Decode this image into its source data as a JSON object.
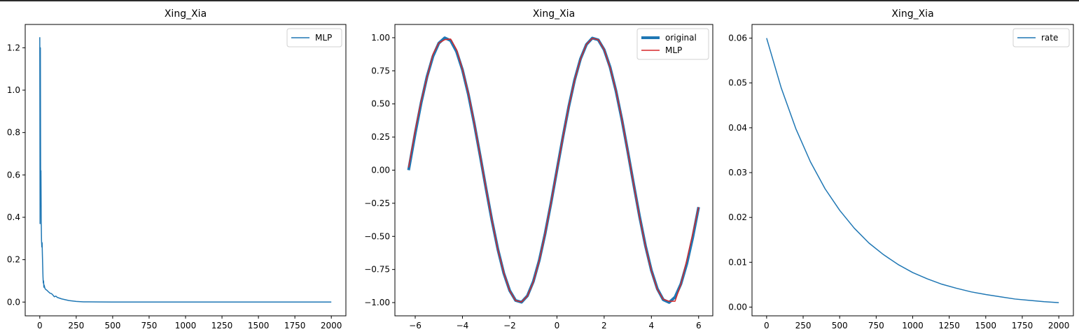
{
  "chart_data": [
    {
      "type": "line",
      "title": "Xing_Xia",
      "xlim": [
        -100,
        2100
      ],
      "ylim": [
        -0.065,
        1.31
      ],
      "xticks": [
        0,
        250,
        500,
        750,
        1000,
        1250,
        1500,
        1750,
        2000
      ],
      "yticks": [
        0.0,
        0.2,
        0.4,
        0.6,
        0.8,
        1.0,
        1.2
      ],
      "ytick_labels": [
        "0.0",
        "0.2",
        "0.4",
        "0.6",
        "0.8",
        "1.0",
        "1.2"
      ],
      "legend": "top-right",
      "series": [
        {
          "name": "MLP",
          "color": "#1f77b4",
          "x": [
            0,
            2,
            4,
            6,
            8,
            10,
            12,
            14,
            16,
            18,
            20,
            22,
            24,
            26,
            28,
            30,
            35,
            40,
            50,
            60,
            70,
            80,
            90,
            100,
            110,
            120,
            150,
            200,
            250,
            300,
            400,
            500,
            750,
            1000,
            1500,
            2000
          ],
          "y": [
            1.25,
            0.37,
            1.2,
            0.55,
            0.62,
            0.38,
            0.29,
            0.26,
            0.28,
            0.22,
            0.17,
            0.12,
            0.09,
            0.1,
            0.07,
            0.08,
            0.065,
            0.06,
            0.055,
            0.048,
            0.042,
            0.04,
            0.033,
            0.025,
            0.028,
            0.022,
            0.015,
            0.007,
            0.003,
            0.001,
            0.0005,
            0.0003,
            0.0002,
            0.0001,
            0.0001,
            0.0001
          ]
        }
      ]
    },
    {
      "type": "line",
      "title": "Xing_Xia",
      "xlim": [
        -6.86,
        6.6
      ],
      "ylim": [
        -1.1,
        1.1
      ],
      "xticks": [
        -6,
        -4,
        -2,
        0,
        2,
        4,
        6
      ],
      "xtick_labels": [
        "−6",
        "−4",
        "−2",
        "0",
        "2",
        "4",
        "6"
      ],
      "yticks": [
        -1.0,
        -0.75,
        -0.5,
        -0.25,
        0.0,
        0.25,
        0.5,
        0.75,
        1.0
      ],
      "ytick_labels": [
        "−1.00",
        "−0.75",
        "−0.50",
        "−0.25",
        "0.00",
        "0.25",
        "0.50",
        "0.75",
        "1.00"
      ],
      "legend": "top-right",
      "series": [
        {
          "name": "original",
          "color": "#1f77b4",
          "x": [
            -6.28,
            -6.0,
            -5.75,
            -5.5,
            -5.25,
            -5.0,
            -4.75,
            -4.5,
            -4.25,
            -4.0,
            -3.75,
            -3.5,
            -3.25,
            -3.0,
            -2.75,
            -2.5,
            -2.25,
            -2.0,
            -1.75,
            -1.5,
            -1.25,
            -1.0,
            -0.75,
            -0.5,
            -0.25,
            0.0,
            0.25,
            0.5,
            0.75,
            1.0,
            1.25,
            1.5,
            1.75,
            2.0,
            2.25,
            2.5,
            2.75,
            3.0,
            3.25,
            3.5,
            3.75,
            4.0,
            4.25,
            4.5,
            4.75,
            5.0,
            5.25,
            5.5,
            5.75,
            6.0
          ],
          "y": [
            0.0,
            0.279,
            0.508,
            0.706,
            0.859,
            0.959,
            0.999,
            0.978,
            0.895,
            0.757,
            0.572,
            0.351,
            0.108,
            -0.141,
            -0.382,
            -0.598,
            -0.778,
            -0.909,
            -0.984,
            -0.997,
            -0.949,
            -0.841,
            -0.682,
            -0.479,
            -0.247,
            0.0,
            0.247,
            0.479,
            0.682,
            0.841,
            0.949,
            0.997,
            0.984,
            0.909,
            0.778,
            0.598,
            0.382,
            0.141,
            -0.108,
            -0.351,
            -0.572,
            -0.757,
            -0.895,
            -0.978,
            -0.999,
            -0.959,
            -0.859,
            -0.706,
            -0.508,
            -0.279
          ]
        },
        {
          "name": "MLP",
          "color": "#d62728",
          "x": [
            -6.28,
            -6.0,
            -5.75,
            -5.5,
            -5.25,
            -5.0,
            -4.75,
            -4.5,
            -4.25,
            -4.0,
            -3.75,
            -3.5,
            -3.25,
            -3.0,
            -2.75,
            -2.5,
            -2.25,
            -2.0,
            -1.75,
            -1.5,
            -1.25,
            -1.0,
            -0.75,
            -0.5,
            -0.25,
            0.0,
            0.25,
            0.5,
            0.75,
            1.0,
            1.25,
            1.5,
            1.75,
            2.0,
            2.25,
            2.5,
            2.75,
            3.0,
            3.25,
            3.5,
            3.75,
            4.0,
            4.25,
            4.5,
            4.75,
            5.0,
            5.25,
            5.5,
            5.75,
            6.0
          ],
          "y": [
            0.02,
            0.3,
            0.52,
            0.7,
            0.875,
            0.96,
            0.985,
            0.99,
            0.91,
            0.76,
            0.58,
            0.355,
            0.11,
            -0.14,
            -0.38,
            -0.6,
            -0.775,
            -0.91,
            -0.985,
            -0.995,
            -0.95,
            -0.845,
            -0.685,
            -0.48,
            -0.245,
            0.0,
            0.245,
            0.48,
            0.68,
            0.84,
            0.95,
            0.995,
            0.985,
            0.91,
            0.775,
            0.6,
            0.385,
            0.14,
            -0.11,
            -0.355,
            -0.575,
            -0.76,
            -0.9,
            -0.975,
            -0.99,
            -0.99,
            -0.86,
            -0.68,
            -0.48,
            -0.28
          ]
        }
      ]
    },
    {
      "type": "line",
      "title": "Xing_Xia",
      "xlim": [
        -100,
        2100
      ],
      "ylim": [
        -0.00195,
        0.06305
      ],
      "xticks": [
        0,
        250,
        500,
        750,
        1000,
        1250,
        1500,
        1750,
        2000
      ],
      "yticks": [
        0.0,
        0.01,
        0.02,
        0.03,
        0.04,
        0.05,
        0.06
      ],
      "ytick_labels": [
        "0.00",
        "0.01",
        "0.02",
        "0.03",
        "0.04",
        "0.05",
        "0.06"
      ],
      "legend": "top-right",
      "series": [
        {
          "name": "rate",
          "color": "#1f77b4",
          "x": [
            0,
            100,
            200,
            300,
            400,
            500,
            600,
            700,
            800,
            900,
            1000,
            1100,
            1200,
            1300,
            1400,
            1500,
            1600,
            1700,
            1800,
            1900,
            2000
          ],
          "y": [
            0.06,
            0.0489,
            0.0398,
            0.0324,
            0.0264,
            0.0216,
            0.0176,
            0.0143,
            0.0117,
            0.0095,
            0.0077,
            0.0063,
            0.0051,
            0.0042,
            0.0034,
            0.0028,
            0.0023,
            0.0018,
            0.0015,
            0.0012,
            0.001
          ]
        }
      ]
    }
  ]
}
